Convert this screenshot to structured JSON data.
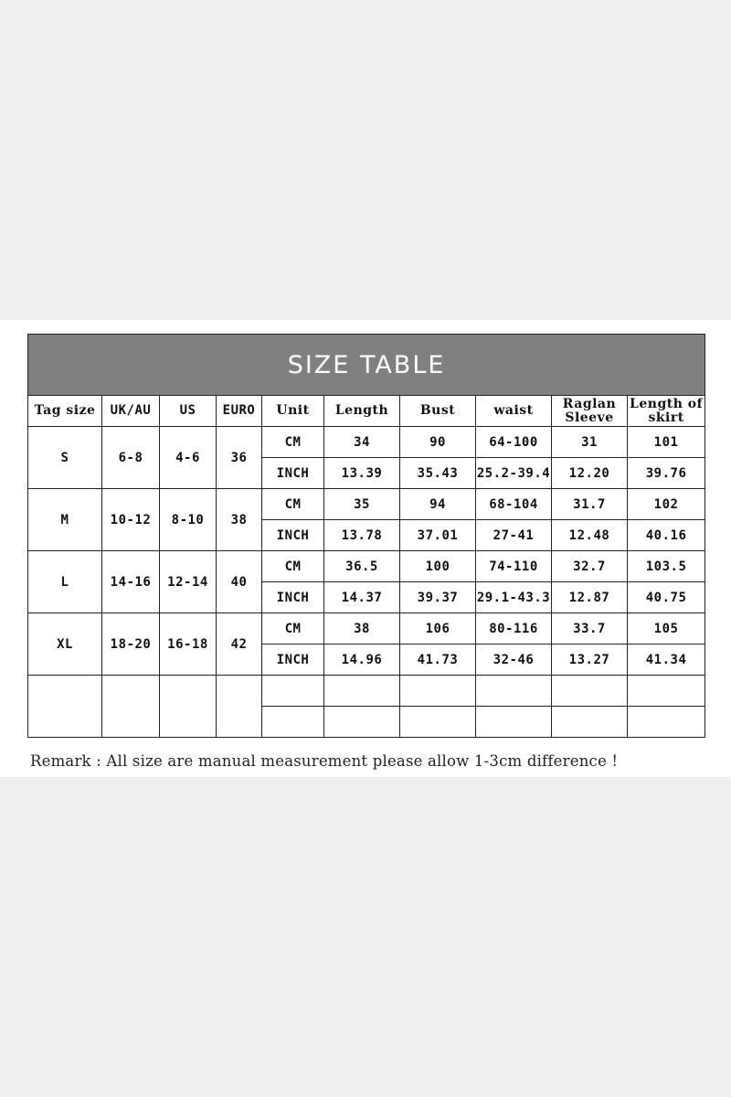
{
  "title": "SIZE TABLE",
  "colors": {
    "title_bg": "#808080",
    "title_text": "#ffffff",
    "page_bg": "#eeeeee"
  },
  "headers": [
    "Tag size",
    "UK/AU",
    "US",
    "EURO",
    "Unit",
    "Length",
    "Bust",
    "waist",
    "Raglan Sleeve",
    "Length of skirt"
  ],
  "sizes": [
    {
      "tag": "S",
      "uk_au": "6-8",
      "us": "4-6",
      "euro": "36",
      "cm": {
        "unit": "CM",
        "values": [
          "34",
          "90",
          "64-100",
          "31",
          "101"
        ]
      },
      "inch": {
        "unit": "INCH",
        "values": [
          "13.39",
          "35.43",
          "25.2-39.4",
          "12.20",
          "39.76"
        ]
      }
    },
    {
      "tag": "M",
      "uk_au": "10-12",
      "us": "8-10",
      "euro": "38",
      "cm": {
        "unit": "CM",
        "values": [
          "35",
          "94",
          "68-104",
          "31.7",
          "102"
        ]
      },
      "inch": {
        "unit": "INCH",
        "values": [
          "13.78",
          "37.01",
          "27-41",
          "12.48",
          "40.16"
        ]
      }
    },
    {
      "tag": "L",
      "uk_au": "14-16",
      "us": "12-14",
      "euro": "40",
      "cm": {
        "unit": "CM",
        "values": [
          "36.5",
          "100",
          "74-110",
          "32.7",
          "103.5"
        ]
      },
      "inch": {
        "unit": "INCH",
        "values": [
          "14.37",
          "39.37",
          "29.1-43.3",
          "12.87",
          "40.75"
        ]
      }
    },
    {
      "tag": "XL",
      "uk_au": "18-20",
      "us": "16-18",
      "euro": "42",
      "cm": {
        "unit": "CM",
        "values": [
          "38",
          "106",
          "80-116",
          "33.7",
          "105"
        ]
      },
      "inch": {
        "unit": "INCH",
        "values": [
          "14.96",
          "41.73",
          "32-46",
          "13.27",
          "41.34"
        ]
      }
    }
  ],
  "remark": "Remark : All size are manual measurement please allow 1-3cm difference !"
}
